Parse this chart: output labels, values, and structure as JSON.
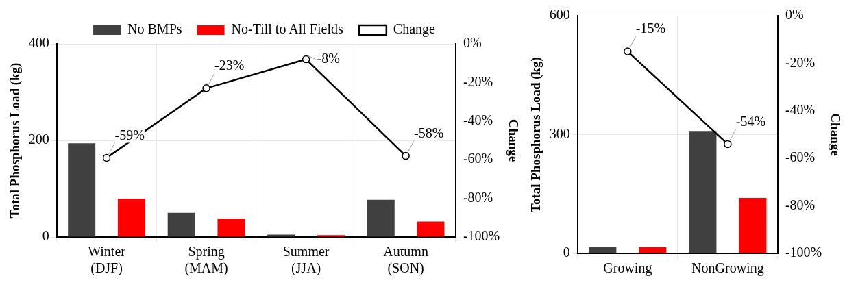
{
  "chart_data": [
    {
      "type": "bar",
      "categories": [
        "Winter (DJF)",
        "Spring (MAM)",
        "Summer (JJA)",
        "Autumn (SON)"
      ],
      "ylabel": "Total Phosphorus Load (kg)",
      "y2label": "Change",
      "ylim": [
        0,
        400
      ],
      "yticks": [
        0,
        200,
        400
      ],
      "y2lim": [
        -100,
        0
      ],
      "y2ticks": [
        {
          "value": -100,
          "label": "-100%"
        },
        {
          "value": -80,
          "label": "-80%"
        },
        {
          "value": -60,
          "label": "-60%"
        },
        {
          "value": -40,
          "label": "-40%"
        },
        {
          "value": -20,
          "label": "-20%"
        },
        {
          "value": 0,
          "label": "0%"
        }
      ],
      "grid": true,
      "legend": "top",
      "series": [
        {
          "name": "No BMPs",
          "color": "#404040",
          "values": [
            194,
            50,
            5,
            77
          ]
        },
        {
          "name": "No-Till to All Fields",
          "color": "#ff0000",
          "values": [
            79,
            38,
            4,
            32
          ]
        },
        {
          "name": "Change",
          "type": "line",
          "axis": "y2",
          "marker": "circle",
          "color": "#000000",
          "values": [
            -59,
            -23,
            -8,
            -58
          ],
          "value_labels": [
            "-59%",
            "-23%",
            "-8%",
            "-58%"
          ]
        }
      ]
    },
    {
      "type": "bar",
      "categories": [
        "Growing",
        "NonGrowing"
      ],
      "ylabel": "Total Phosphorus Load (kg)",
      "y2label": "Change",
      "ylim": [
        0,
        600
      ],
      "yticks": [
        0,
        300,
        600
      ],
      "y2lim": [
        -100,
        0
      ],
      "y2ticks": [
        {
          "value": -100,
          "label": "-100%"
        },
        {
          "value": -80,
          "label": "-80%"
        },
        {
          "value": -60,
          "label": "-60%"
        },
        {
          "value": -40,
          "label": "-40%"
        },
        {
          "value": -20,
          "label": "-20%"
        },
        {
          "value": 0,
          "label": "0%"
        }
      ],
      "grid": true,
      "series": [
        {
          "color": "#404040",
          "values": [
            17,
            309
          ]
        },
        {
          "color": "#ff0000",
          "values": [
            16,
            140
          ]
        },
        {
          "type": "line",
          "axis": "y2",
          "marker": "circle",
          "color": "#000000",
          "values": [
            -15,
            -54
          ],
          "value_labels": [
            "-15%",
            "-54%"
          ]
        }
      ]
    }
  ]
}
